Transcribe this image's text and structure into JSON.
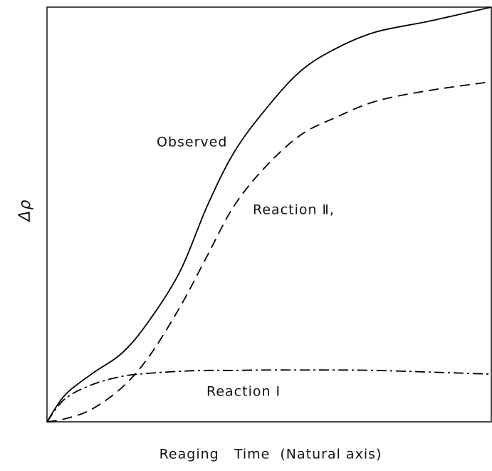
{
  "chart_data": {
    "type": "line",
    "y_label": "Δρ",
    "x_label": "Reaging   Time  (Natural axis)",
    "xlim": [
      0,
      1
    ],
    "ylim": [
      0,
      1
    ],
    "x": [
      0,
      0.04,
      0.1,
      0.17,
      0.23,
      0.3,
      0.36,
      0.42,
      0.49,
      0.57,
      0.65,
      0.74,
      0.86,
      1
    ],
    "series": [
      {
        "name": "Observed",
        "color": "#000000",
        "dash": "solid",
        "values": [
          0,
          0.064,
          0.115,
          0.167,
          0.244,
          0.364,
          0.519,
          0.648,
          0.751,
          0.845,
          0.9,
          0.94,
          0.966,
          1
        ]
      },
      {
        "name": "Reaction Ⅱ,",
        "color": "#000000",
        "dash": "dashed",
        "values": [
          0,
          0.007,
          0.03,
          0.084,
          0.158,
          0.278,
          0.399,
          0.519,
          0.613,
          0.691,
          0.734,
          0.773,
          0.799,
          0.82
        ]
      },
      {
        "name": "Reaction Ⅰ",
        "color": "#000000",
        "dash": "dashdot",
        "values": [
          0,
          0.055,
          0.089,
          0.11,
          0.117,
          0.122,
          0.124,
          0.124,
          0.125,
          0.125,
          0.125,
          0.124,
          0.12,
          0.115
        ]
      }
    ]
  }
}
